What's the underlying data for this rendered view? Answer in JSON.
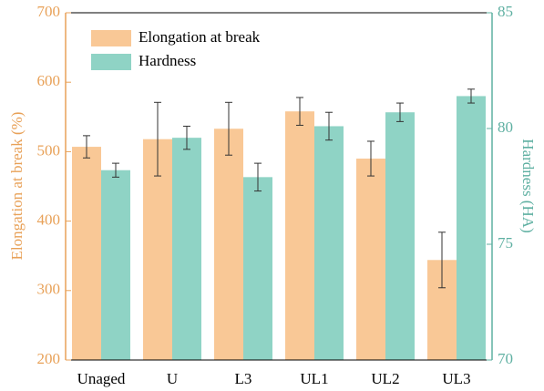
{
  "chart_data": {
    "type": "bar",
    "categories": [
      "Unaged",
      "U",
      "L3",
      "UL1",
      "UL2",
      "UL3"
    ],
    "series": [
      {
        "name": "Elongation at break",
        "color": "#f9c896",
        "values": [
          507,
          518,
          533,
          558,
          490,
          344
        ],
        "errors": [
          16,
          53,
          38,
          20,
          25,
          40
        ]
      },
      {
        "name": "Hardness",
        "color": "#8fd3c5",
        "axis": "y2",
        "values": [
          78.2,
          79.6,
          77.9,
          80.1,
          80.7,
          81.4
        ],
        "errors": [
          0.3,
          0.5,
          0.6,
          0.6,
          0.4,
          0.3
        ]
      }
    ],
    "ylabel": "Elongation at break (%)",
    "y2label": "Hardness (HA)",
    "ylim": [
      200,
      700
    ],
    "yticks": [
      200,
      300,
      400,
      500,
      600,
      700
    ],
    "y2lim": [
      70,
      85
    ],
    "y2ticks": [
      70,
      75,
      80,
      85
    ],
    "ycolor": "#e8a158",
    "y2color": "#5fb0a2",
    "legend": "upper left"
  }
}
